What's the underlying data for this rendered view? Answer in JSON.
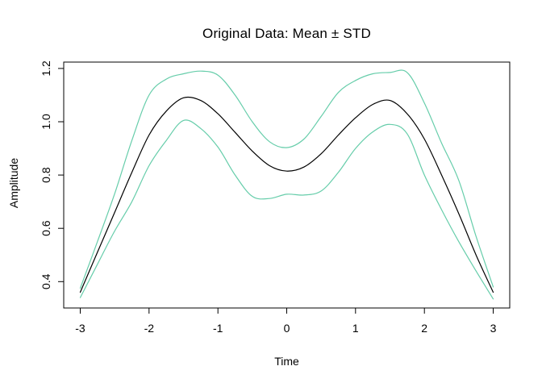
{
  "colors": {
    "background": "#FFFFFF",
    "frame": "#000000",
    "tick": "#000000",
    "mean_line": "#000000",
    "std_line": "#66CDAA"
  },
  "chart_data": {
    "type": "line",
    "title": "Original Data: Mean ± STD",
    "xlabel": "Time",
    "ylabel": "Amplitude",
    "xlim": [
      -3.24,
      3.24
    ],
    "ylim": [
      0.301,
      1.224
    ],
    "x_ticks": [
      -3,
      -2,
      -1,
      0,
      1,
      2,
      3
    ],
    "x_tick_labels": [
      "-3",
      "-2",
      "-1",
      "0",
      "1",
      "2",
      "3"
    ],
    "y_ticks": [
      0.4,
      0.6,
      0.8,
      1.0,
      1.2
    ],
    "y_tick_labels": [
      "0.4",
      "0.6",
      "0.8",
      "1.0",
      "1.2"
    ],
    "grid": false,
    "legend": "none",
    "x": [
      -3,
      -2.75,
      -2.5,
      -2.25,
      -2,
      -1.75,
      -1.5,
      -1.25,
      -1,
      -0.75,
      -0.5,
      -0.25,
      0,
      0.25,
      0.5,
      0.75,
      1,
      1.25,
      1.5,
      1.75,
      2,
      2.25,
      2.5,
      2.75,
      3
    ],
    "series": [
      {
        "name": "mean",
        "color": "#000000",
        "values": [
          0.36,
          0.51,
          0.66,
          0.81,
          0.95,
          1.04,
          1.09,
          1.08,
          1.03,
          0.96,
          0.89,
          0.835,
          0.815,
          0.83,
          0.88,
          0.95,
          1.015,
          1.065,
          1.08,
          1.03,
          0.935,
          0.8,
          0.655,
          0.5,
          0.36
        ]
      },
      {
        "name": "mean_plus_std",
        "color": "#66CDAA",
        "values": [
          0.375,
          0.55,
          0.73,
          0.93,
          1.1,
          1.16,
          1.18,
          1.19,
          1.175,
          1.1,
          1.0,
          0.925,
          0.903,
          0.935,
          1.02,
          1.11,
          1.155,
          1.18,
          1.185,
          1.185,
          1.07,
          0.92,
          0.78,
          0.57,
          0.38
        ]
      },
      {
        "name": "mean_minus_std",
        "color": "#66CDAA",
        "values": [
          0.34,
          0.465,
          0.59,
          0.7,
          0.835,
          0.93,
          1.005,
          0.975,
          0.905,
          0.8,
          0.72,
          0.712,
          0.728,
          0.725,
          0.74,
          0.81,
          0.9,
          0.962,
          0.99,
          0.955,
          0.8,
          0.67,
          0.55,
          0.44,
          0.335
        ]
      }
    ]
  }
}
